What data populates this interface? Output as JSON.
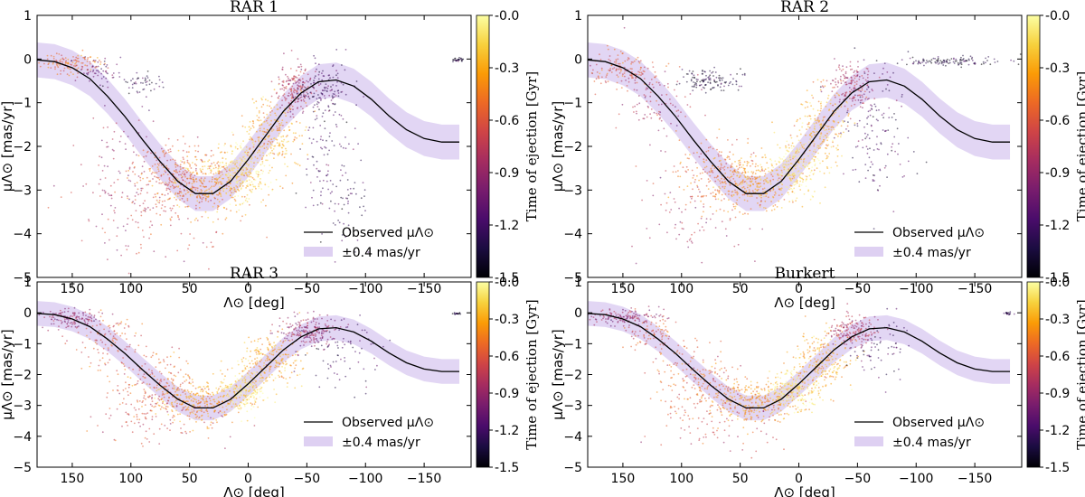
{
  "colorbar": {
    "label": "Time of ejection [Gyr]",
    "ticks": [
      "-0.0",
      "-0.3",
      "-0.6",
      "-0.9",
      "-1.2",
      "-1.5"
    ],
    "tick_values": [
      0.0,
      -0.3,
      -0.6,
      -0.9,
      -1.2,
      -1.5
    ],
    "range": [
      -1.5,
      0.0
    ],
    "colormap": [
      "#000004",
      "#1b0c41",
      "#4a0c6b",
      "#781c6d",
      "#a52c60",
      "#cf4446",
      "#ed6925",
      "#fb9b06",
      "#f7d13d",
      "#fcffa4"
    ]
  },
  "band_color": "#d8c8f0",
  "line_color": "#000000",
  "chart_data": [
    {
      "type": "scatter",
      "title": "RAR 1",
      "xlabel": "Λ⊙ [deg]",
      "ylabel": "μΛ⊙ [mas/yr]",
      "xlim": [
        180,
        -190
      ],
      "ylim": [
        -5,
        1
      ],
      "xticks": [
        150,
        100,
        50,
        0,
        -50,
        -100,
        -150
      ],
      "xtick_labels": [
        "150",
        "100",
        "50",
        "0",
        "−50",
        "−100",
        "−150"
      ],
      "yticks": [
        1,
        0,
        -1,
        -2,
        -3,
        -4,
        -5
      ],
      "ytick_labels": [
        "1",
        "0",
        "−1",
        "−2",
        "−3",
        "−4",
        "−5"
      ],
      "legend": [
        "Observed μΛ⊙",
        "±0.4 mas/yr"
      ],
      "band_halfwidth": 0.4,
      "observed_curve": {
        "x": [
          180,
          165,
          150,
          135,
          120,
          105,
          90,
          75,
          60,
          45,
          30,
          15,
          0,
          -15,
          -30,
          -45,
          -60,
          -75,
          -90,
          -105,
          -120,
          -135,
          -150,
          -165,
          -180
        ],
        "y": [
          -0.02,
          -0.06,
          -0.2,
          -0.45,
          -0.85,
          -1.32,
          -1.85,
          -2.35,
          -2.8,
          -3.08,
          -3.08,
          -2.8,
          -2.3,
          -1.75,
          -1.2,
          -0.78,
          -0.52,
          -0.48,
          -0.62,
          -0.92,
          -1.3,
          -1.62,
          -1.82,
          -1.9,
          -1.9
        ]
      },
      "clusters": [
        {
          "x": 150,
          "y": -0.1,
          "sx": 14,
          "sy": 0.12,
          "n": 120,
          "t": -0.5
        },
        {
          "x": 130,
          "y": -0.3,
          "sx": 10,
          "sy": 0.15,
          "n": 60,
          "t": -1.1
        },
        {
          "x": 90,
          "y": -0.55,
          "sx": 8,
          "sy": 0.12,
          "n": 45,
          "t": -1.3
        },
        {
          "x": 100,
          "y": -2.6,
          "sx": 20,
          "sy": 0.8,
          "n": 90,
          "t": -0.9
        },
        {
          "x": 60,
          "y": -2.6,
          "sx": 18,
          "sy": 0.35,
          "n": 240,
          "t": -0.55
        },
        {
          "x": 30,
          "y": -2.9,
          "sx": 18,
          "sy": 0.35,
          "n": 300,
          "t": -0.35
        },
        {
          "x": 5,
          "y": -2.55,
          "sx": 10,
          "sy": 0.3,
          "n": 260,
          "t": -0.12
        },
        {
          "x": -20,
          "y": -1.7,
          "sx": 12,
          "sy": 0.45,
          "n": 260,
          "t": -0.3
        },
        {
          "x": -40,
          "y": -0.7,
          "sx": 8,
          "sy": 0.25,
          "n": 180,
          "t": -0.8
        },
        {
          "x": -60,
          "y": -0.7,
          "sx": 10,
          "sy": 0.3,
          "n": 120,
          "t": -1.2
        },
        {
          "x": -70,
          "y": -2.0,
          "sx": 12,
          "sy": 0.9,
          "n": 120,
          "t": -1.2
        },
        {
          "x": -85,
          "y": -3.5,
          "sx": 10,
          "sy": 0.5,
          "n": 40,
          "t": -1.3
        },
        {
          "x": 80,
          "y": -3.4,
          "sx": 35,
          "sy": 0.6,
          "n": 160,
          "t": -0.7
        },
        {
          "x": -178,
          "y": -0.02,
          "sx": 3,
          "sy": 0.02,
          "n": 30,
          "t": -1.35
        }
      ]
    },
    {
      "type": "scatter",
      "title": "RAR 2",
      "xlabel": "Λ⊙ [deg]",
      "ylabel": "μΛ⊙ [mas/yr]",
      "xlim": [
        180,
        -190
      ],
      "ylim": [
        -5,
        1
      ],
      "xticks": [
        150,
        100,
        50,
        0,
        -50,
        -100,
        -150
      ],
      "xtick_labels": [
        "150",
        "100",
        "50",
        "0",
        "−50",
        "−100",
        "−150"
      ],
      "yticks": [
        1,
        0,
        -1,
        -2,
        -3,
        -4,
        -5
      ],
      "ytick_labels": [
        "1",
        "0",
        "−1",
        "−2",
        "−3",
        "−4",
        "−5"
      ],
      "legend": [
        "Observed μΛ⊙",
        "±0.4 mas/yr"
      ],
      "band_halfwidth": 0.4,
      "observed_curve": {
        "x": [
          180,
          165,
          150,
          135,
          120,
          105,
          90,
          75,
          60,
          45,
          30,
          15,
          0,
          -15,
          -30,
          -45,
          -60,
          -75,
          -90,
          -105,
          -120,
          -135,
          -150,
          -165,
          -180
        ],
        "y": [
          -0.02,
          -0.06,
          -0.2,
          -0.45,
          -0.85,
          -1.32,
          -1.85,
          -2.35,
          -2.8,
          -3.08,
          -3.08,
          -2.8,
          -2.3,
          -1.75,
          -1.2,
          -0.78,
          -0.52,
          -0.48,
          -0.62,
          -0.92,
          -1.3,
          -1.62,
          -1.82,
          -1.9,
          -1.9
        ]
      },
      "clusters": [
        {
          "x": 150,
          "y": -0.25,
          "sx": 16,
          "sy": 0.2,
          "n": 150,
          "t": -0.6
        },
        {
          "x": 120,
          "y": -1.0,
          "sx": 15,
          "sy": 0.4,
          "n": 90,
          "t": -0.8
        },
        {
          "x": 75,
          "y": -0.5,
          "sx": 12,
          "sy": 0.12,
          "n": 120,
          "t": -1.35
        },
        {
          "x": 70,
          "y": -2.6,
          "sx": 18,
          "sy": 0.4,
          "n": 220,
          "t": -0.5
        },
        {
          "x": 35,
          "y": -2.85,
          "sx": 16,
          "sy": 0.3,
          "n": 280,
          "t": -0.35
        },
        {
          "x": 5,
          "y": -2.5,
          "sx": 10,
          "sy": 0.3,
          "n": 240,
          "t": -0.1
        },
        {
          "x": -20,
          "y": -1.6,
          "sx": 12,
          "sy": 0.45,
          "n": 240,
          "t": -0.3
        },
        {
          "x": -45,
          "y": -0.6,
          "sx": 10,
          "sy": 0.25,
          "n": 160,
          "t": -0.8
        },
        {
          "x": -65,
          "y": -1.6,
          "sx": 14,
          "sy": 0.8,
          "n": 140,
          "t": -1.2
        },
        {
          "x": -130,
          "y": -0.05,
          "sx": 25,
          "sy": 0.05,
          "n": 120,
          "t": -1.35
        },
        {
          "x": 90,
          "y": -3.6,
          "sx": 25,
          "sy": 0.6,
          "n": 80,
          "t": -0.8
        }
      ]
    },
    {
      "type": "scatter",
      "title": "RAR 3",
      "xlabel": "Λ⊙ [deg]",
      "ylabel": "μΛ⊙ [mas/yr]",
      "xlim": [
        180,
        -190
      ],
      "ylim": [
        -5,
        1
      ],
      "xticks": [
        150,
        100,
        50,
        0,
        -50,
        -100,
        -150
      ],
      "xtick_labels": [
        "150",
        "100",
        "50",
        "0",
        "−50",
        "−100",
        "−150"
      ],
      "yticks": [
        1,
        0,
        -1,
        -2,
        -3,
        -4,
        -5
      ],
      "ytick_labels": [
        "1",
        "0",
        "−1",
        "−2",
        "−3",
        "−4",
        "−5"
      ],
      "legend": [
        "Observed μΛ⊙",
        "±0.4 mas/yr"
      ],
      "band_halfwidth": 0.4,
      "observed_curve": {
        "x": [
          180,
          165,
          150,
          135,
          120,
          105,
          90,
          75,
          60,
          45,
          30,
          15,
          0,
          -15,
          -30,
          -45,
          -60,
          -75,
          -90,
          -105,
          -120,
          -135,
          -150,
          -165,
          -180
        ],
        "y": [
          -0.02,
          -0.06,
          -0.2,
          -0.45,
          -0.85,
          -1.32,
          -1.85,
          -2.35,
          -2.8,
          -3.08,
          -3.08,
          -2.8,
          -2.3,
          -1.75,
          -1.2,
          -0.78,
          -0.52,
          -0.48,
          -0.62,
          -0.92,
          -1.3,
          -1.62,
          -1.82,
          -1.9,
          -1.9
        ]
      },
      "clusters": [
        {
          "x": 150,
          "y": -0.2,
          "sx": 14,
          "sy": 0.15,
          "n": 140,
          "t": -0.9
        },
        {
          "x": 120,
          "y": -0.9,
          "sx": 14,
          "sy": 0.4,
          "n": 110,
          "t": -0.6
        },
        {
          "x": 80,
          "y": -2.3,
          "sx": 18,
          "sy": 0.5,
          "n": 200,
          "t": -0.55
        },
        {
          "x": 40,
          "y": -2.9,
          "sx": 18,
          "sy": 0.35,
          "n": 300,
          "t": -0.35
        },
        {
          "x": 5,
          "y": -2.5,
          "sx": 10,
          "sy": 0.3,
          "n": 240,
          "t": -0.1
        },
        {
          "x": -20,
          "y": -1.6,
          "sx": 12,
          "sy": 0.45,
          "n": 240,
          "t": -0.3
        },
        {
          "x": -50,
          "y": -0.6,
          "sx": 12,
          "sy": 0.25,
          "n": 200,
          "t": -0.9
        },
        {
          "x": -80,
          "y": -1.2,
          "sx": 15,
          "sy": 0.6,
          "n": 80,
          "t": -1.2
        },
        {
          "x": 70,
          "y": -3.5,
          "sx": 30,
          "sy": 0.5,
          "n": 100,
          "t": -0.7
        },
        {
          "x": -178,
          "y": -0.02,
          "sx": 2,
          "sy": 0.02,
          "n": 20,
          "t": -1.3
        }
      ]
    },
    {
      "type": "scatter",
      "title": "Burkert",
      "xlabel": "Λ⊙ [deg]",
      "ylabel": "μΛ⊙ [mas/yr]",
      "xlim": [
        180,
        -190
      ],
      "ylim": [
        -5,
        1
      ],
      "xticks": [
        150,
        100,
        50,
        0,
        -50,
        -100,
        -150
      ],
      "xtick_labels": [
        "150",
        "100",
        "50",
        "0",
        "−50",
        "−100",
        "−150"
      ],
      "yticks": [
        1,
        0,
        -1,
        -2,
        -3,
        -4,
        -5
      ],
      "ytick_labels": [
        "1",
        "0",
        "−1",
        "−2",
        "−3",
        "−4",
        "−5"
      ],
      "legend": [
        "Observed μΛ⊙",
        "±0.4 mas/yr"
      ],
      "band_halfwidth": 0.4,
      "observed_curve": {
        "x": [
          180,
          165,
          150,
          135,
          120,
          105,
          90,
          75,
          60,
          45,
          30,
          15,
          0,
          -15,
          -30,
          -45,
          -60,
          -75,
          -90,
          -105,
          -120,
          -135,
          -150,
          -165,
          -180
        ],
        "y": [
          -0.02,
          -0.06,
          -0.2,
          -0.45,
          -0.85,
          -1.32,
          -1.85,
          -2.35,
          -2.8,
          -3.08,
          -3.08,
          -2.8,
          -2.3,
          -1.75,
          -1.2,
          -0.78,
          -0.52,
          -0.48,
          -0.62,
          -0.92,
          -1.3,
          -1.62,
          -1.82,
          -1.9,
          -1.9
        ]
      },
      "clusters": [
        {
          "x": 150,
          "y": -0.15,
          "sx": 14,
          "sy": 0.12,
          "n": 140,
          "t": -0.9
        },
        {
          "x": 125,
          "y": -0.7,
          "sx": 14,
          "sy": 0.35,
          "n": 100,
          "t": -0.6
        },
        {
          "x": 85,
          "y": -2.2,
          "sx": 18,
          "sy": 0.5,
          "n": 190,
          "t": -0.55
        },
        {
          "x": 40,
          "y": -2.9,
          "sx": 18,
          "sy": 0.35,
          "n": 300,
          "t": -0.35
        },
        {
          "x": 5,
          "y": -2.5,
          "sx": 10,
          "sy": 0.3,
          "n": 240,
          "t": -0.1
        },
        {
          "x": -20,
          "y": -1.6,
          "sx": 12,
          "sy": 0.45,
          "n": 240,
          "t": -0.3
        },
        {
          "x": -45,
          "y": -0.6,
          "sx": 10,
          "sy": 0.25,
          "n": 180,
          "t": -0.8
        },
        {
          "x": -70,
          "y": -1.1,
          "sx": 12,
          "sy": 0.5,
          "n": 70,
          "t": -1.2
        },
        {
          "x": 65,
          "y": -3.5,
          "sx": 30,
          "sy": 0.5,
          "n": 100,
          "t": -0.7
        },
        {
          "x": -178,
          "y": -0.02,
          "sx": 2,
          "sy": 0.02,
          "n": 20,
          "t": -1.3
        }
      ]
    }
  ]
}
